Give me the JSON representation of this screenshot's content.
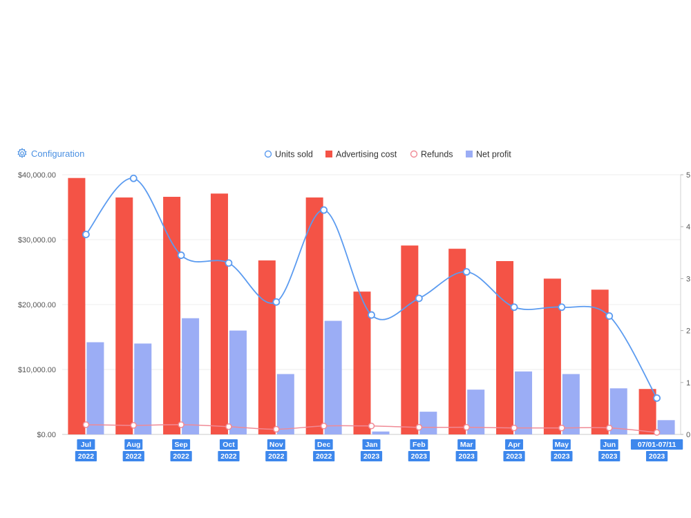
{
  "toolbar": {
    "config_label": "Configuration",
    "config_icon": "gear-icon"
  },
  "chart_data": {
    "type": "bar",
    "categories": [
      [
        "Jul",
        "2022"
      ],
      [
        "Aug",
        "2022"
      ],
      [
        "Sep",
        "2022"
      ],
      [
        "Oct",
        "2022"
      ],
      [
        "Nov",
        "2022"
      ],
      [
        "Dec",
        "2022"
      ],
      [
        "Jan",
        "2023"
      ],
      [
        "Feb",
        "2023"
      ],
      [
        "Mar",
        "2023"
      ],
      [
        "Apr",
        "2023"
      ],
      [
        "May",
        "2023"
      ],
      [
        "Jun",
        "2023"
      ],
      [
        "07/01-07/11",
        "2023"
      ]
    ],
    "y_left": {
      "ticks": [
        "$0.00",
        "$10,000.00",
        "$20,000.00",
        "$30,000.00",
        "$40,000.00"
      ],
      "ylim": [
        0,
        40000
      ]
    },
    "y_right": {
      "ticks": [
        "0",
        "1",
        "2",
        "3",
        "4",
        "5"
      ],
      "ylim": [
        0,
        5
      ],
      "note": "right axis tick labels partially clipped at image edge"
    },
    "legend_position": "top-center",
    "grid": true,
    "series": [
      {
        "name": "Units sold",
        "type": "line",
        "axis": "right",
        "smooth": true,
        "color": "#5b9bf0",
        "values": [
          3.85,
          4.93,
          3.45,
          3.3,
          2.55,
          4.32,
          2.3,
          2.62,
          3.13,
          2.45,
          2.45,
          2.28,
          0.7
        ]
      },
      {
        "name": "Advertising cost",
        "type": "bar",
        "axis": "left",
        "color": "#f45346",
        "values": [
          39500,
          36500,
          36600,
          37100,
          26800,
          36500,
          22000,
          29100,
          28600,
          26700,
          24000,
          22300,
          7000
        ]
      },
      {
        "name": "Refunds",
        "type": "line",
        "axis": "left",
        "smooth": true,
        "color": "#f08a95",
        "values": [
          1500,
          1400,
          1500,
          1200,
          800,
          1300,
          1300,
          1100,
          1100,
          1000,
          1000,
          1000,
          300
        ]
      },
      {
        "name": "Net profit",
        "type": "bar",
        "axis": "left",
        "color": "#9badf5",
        "values": [
          14200,
          14000,
          17900,
          16000,
          9300,
          17500,
          450,
          3500,
          6900,
          9700,
          9300,
          7100,
          2200
        ]
      }
    ]
  }
}
